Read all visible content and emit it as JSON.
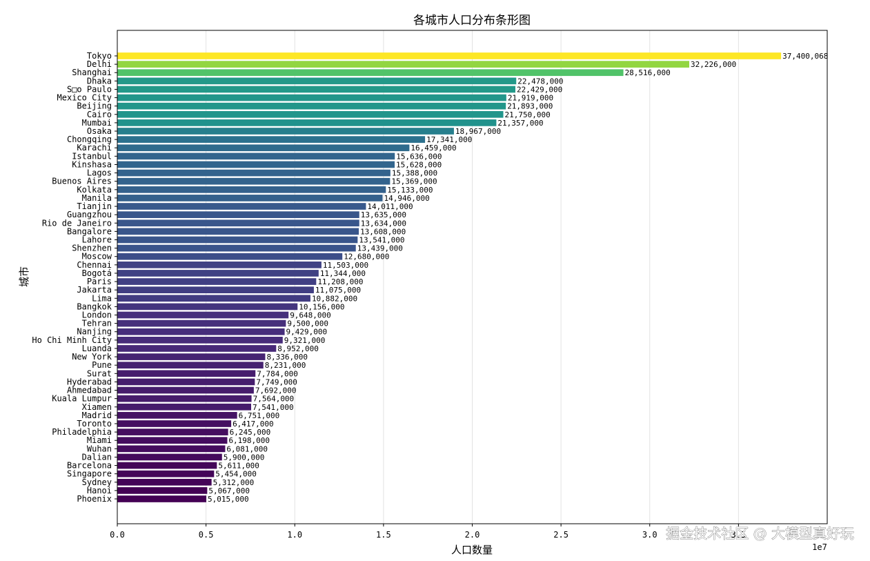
{
  "chart_data": {
    "type": "bar",
    "orientation": "horizontal",
    "title": "各城市人口分布条形图",
    "xlabel": "人口数量",
    "ylabel": "城市",
    "x_multiplier_label": "1e7",
    "xlim": [
      0,
      4.0
    ],
    "x_ticks": [
      0.0,
      0.5,
      1.0,
      1.5,
      2.0,
      2.5,
      3.0,
      3.5
    ],
    "x_tick_labels": [
      "0.0",
      "0.5",
      "1.0",
      "1.5",
      "2.0",
      "2.5",
      "3.0",
      "3.5"
    ],
    "grid": "vertical",
    "colormap": "viridis",
    "categories": [
      "Tokyo",
      "Delhi",
      "Shanghai",
      "Dhaka",
      "S□o Paulo",
      "Mexico City",
      "Beijing",
      "Cairo",
      "Mumbai",
      "Osaka",
      "Chongqing",
      "Karachi",
      "Istanbul",
      "Kinshasa",
      "Lagos",
      "Buenos Aires",
      "Kolkata",
      "Manila",
      "Tianjin",
      "Guangzhou",
      "Rio de Janeiro",
      "Bangalore",
      "Lahore",
      "Shenzhen",
      "Moscow",
      "Chennai",
      "Bogotá",
      "Paris",
      "Jakarta",
      "Lima",
      "Bangkok",
      "London",
      "Tehran",
      "Nanjing",
      "Ho Chi Minh City",
      "Luanda",
      "New York",
      "Pune",
      "Surat",
      "Hyderabad",
      "Ahmedabad",
      "Kuala Lumpur",
      "Xiamen",
      "Madrid",
      "Toronto",
      "Philadelphia",
      "Miami",
      "Wuhan",
      "Dalian",
      "Barcelona",
      "Singapore",
      "Sydney",
      "Hanoi",
      "Phoenix"
    ],
    "values": [
      37400068,
      32226000,
      28516000,
      22478000,
      22429000,
      21919000,
      21893000,
      21750000,
      21357000,
      18967000,
      17341000,
      16459000,
      15636000,
      15628000,
      15388000,
      15369000,
      15133000,
      14946000,
      14011000,
      13635000,
      13634000,
      13608000,
      13541000,
      13439000,
      12680000,
      11503000,
      11344000,
      11208000,
      11075000,
      10882000,
      10156000,
      9648000,
      9500000,
      9429000,
      9321000,
      8952000,
      8336000,
      8231000,
      7784000,
      7749000,
      7692000,
      7564000,
      7541000,
      6751000,
      6417000,
      6245000,
      6198000,
      6081000,
      5900000,
      5611000,
      5454000,
      5312000,
      5067000,
      5015000
    ],
    "value_labels": [
      "37,400,068",
      "32,226,000",
      "28,516,000",
      "22,478,000",
      "22,429,000",
      "21,919,000",
      "21,893,000",
      "21,750,000",
      "21,357,000",
      "18,967,000",
      "17,341,000",
      "16,459,000",
      "15,636,000",
      "15,628,000",
      "15,388,000",
      "15,369,000",
      "15,133,000",
      "14,946,000",
      "14,011,000",
      "13,635,000",
      "13,634,000",
      "13,608,000",
      "13,541,000",
      "13,439,000",
      "12,680,000",
      "11,503,000",
      "11,344,000",
      "11,208,000",
      "11,075,000",
      "10,882,000",
      "10,156,000",
      "9,648,000",
      "9,500,000",
      "9,429,000",
      "9,321,000",
      "8,952,000",
      "8,336,000",
      "8,231,000",
      "7,784,000",
      "7,749,000",
      "7,692,000",
      "7,564,000",
      "7,541,000",
      "6,751,000",
      "6,417,000",
      "6,245,000",
      "6,198,000",
      "6,081,000",
      "5,900,000",
      "5,611,000",
      "5,454,000",
      "5,312,000",
      "5,067,000",
      "5,015,000"
    ]
  },
  "watermark": "掘金技术社区 @ 大模型真好玩"
}
